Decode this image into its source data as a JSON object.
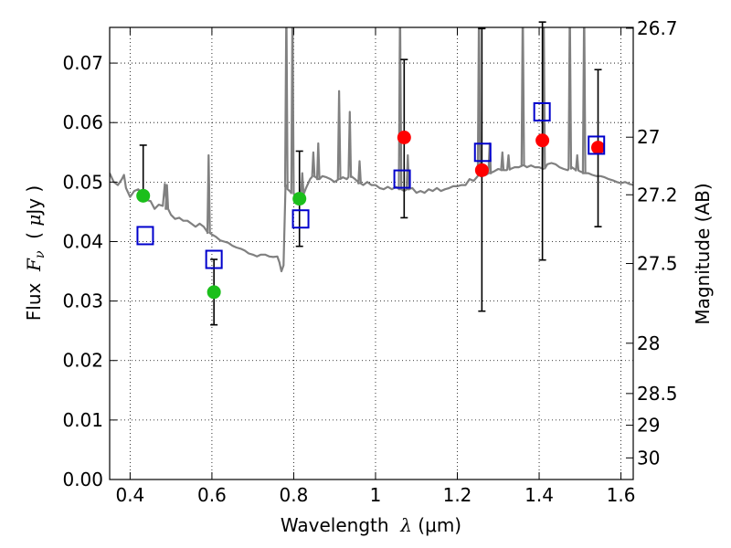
{
  "chart_data": {
    "type": "scatter",
    "xlabel": "Wavelength  λ (μm)",
    "xlabel_parts": [
      "Wavelength  ",
      "λ",
      " (μm)"
    ],
    "ylabel": "Flux  Fν  ( μJy )",
    "ylabel_parts": [
      "Flux  ",
      "F",
      "ν",
      "  ( ",
      "μ",
      "Jy )"
    ],
    "ylabel_right": "Magnitude (AB)",
    "xlim": [
      0.35,
      1.63
    ],
    "ylim": [
      0.0,
      0.076
    ],
    "grid": true,
    "x_ticks": [
      0.4,
      0.6,
      0.8,
      1.0,
      1.2,
      1.4,
      1.6
    ],
    "x_tick_labels": [
      "0.4",
      "0.6",
      "0.8",
      "1",
      "1.2",
      "1.4",
      "1.6"
    ],
    "y_ticks": [
      0.0,
      0.01,
      0.02,
      0.03,
      0.04,
      0.05,
      0.06,
      0.07
    ],
    "y_tick_labels": [
      "0.00",
      "0.01",
      "0.02",
      "0.03",
      "0.04",
      "0.05",
      "0.06",
      "0.07"
    ],
    "mag_ticks": [
      26.7,
      27,
      27.2,
      27.5,
      28,
      28.5,
      29,
      30
    ],
    "mag_tick_labels": [
      "26.7",
      "27",
      "27.2",
      "27.5",
      "28",
      "28.5",
      "29",
      "30"
    ],
    "model_spectrum": {
      "color": "#808080",
      "x": [
        0.35,
        0.36,
        0.37,
        0.38,
        0.385,
        0.39,
        0.4,
        0.41,
        0.42,
        0.43,
        0.44,
        0.45,
        0.46,
        0.47,
        0.48,
        0.485,
        0.49,
        0.5,
        0.51,
        0.52,
        0.53,
        0.54,
        0.55,
        0.56,
        0.57,
        0.58,
        0.59,
        0.6,
        0.61,
        0.62,
        0.63,
        0.64,
        0.65,
        0.66,
        0.67,
        0.68,
        0.69,
        0.7,
        0.71,
        0.72,
        0.73,
        0.74,
        0.75,
        0.76,
        0.765,
        0.77,
        0.775,
        0.78,
        0.785,
        0.79,
        0.8,
        0.81,
        0.82,
        0.83,
        0.84,
        0.85,
        0.86,
        0.87,
        0.88,
        0.89,
        0.9,
        0.91,
        0.92,
        0.93,
        0.94,
        0.95,
        0.96,
        0.97,
        0.98,
        0.99,
        1.0,
        1.01,
        1.02,
        1.03,
        1.04,
        1.05,
        1.06,
        1.07,
        1.08,
        1.09,
        1.1,
        1.11,
        1.12,
        1.13,
        1.14,
        1.15,
        1.16,
        1.17,
        1.18,
        1.19,
        1.2,
        1.21,
        1.22,
        1.23,
        1.24,
        1.25,
        1.26,
        1.27,
        1.28,
        1.29,
        1.3,
        1.31,
        1.32,
        1.33,
        1.34,
        1.35,
        1.36,
        1.37,
        1.38,
        1.39,
        1.4,
        1.41,
        1.42,
        1.43,
        1.44,
        1.45,
        1.46,
        1.47,
        1.48,
        1.49,
        1.5,
        1.51,
        1.52,
        1.53,
        1.54,
        1.55,
        1.56,
        1.57,
        1.58,
        1.59,
        1.6,
        1.61,
        1.62,
        1.63
      ],
      "y": [
        0.0515,
        0.05,
        0.0495,
        0.0505,
        0.0512,
        0.049,
        0.0475,
        0.0485,
        0.0488,
        0.048,
        0.047,
        0.0468,
        0.0455,
        0.0462,
        0.046,
        0.0497,
        0.0455,
        0.0445,
        0.0438,
        0.044,
        0.0435,
        0.0435,
        0.043,
        0.0425,
        0.043,
        0.0425,
        0.0415,
        0.0412,
        0.0408,
        0.0402,
        0.04,
        0.0398,
        0.0393,
        0.039,
        0.0388,
        0.0385,
        0.038,
        0.0378,
        0.0375,
        0.0378,
        0.0378,
        0.0375,
        0.0374,
        0.0375,
        0.0365,
        0.035,
        0.036,
        0.0495,
        0.0488,
        0.0485,
        0.048,
        0.0478,
        0.0478,
        0.049,
        0.0505,
        0.051,
        0.0505,
        0.051,
        0.0508,
        0.0505,
        0.05,
        0.0505,
        0.0508,
        0.0505,
        0.051,
        0.0505,
        0.0498,
        0.0495,
        0.05,
        0.0495,
        0.0495,
        0.049,
        0.0488,
        0.0492,
        0.0488,
        0.0492,
        0.0488,
        0.0485,
        0.0488,
        0.049,
        0.0482,
        0.0485,
        0.0482,
        0.0488,
        0.0485,
        0.049,
        0.0485,
        0.0488,
        0.049,
        0.0493,
        0.0493,
        0.0495,
        0.0495,
        0.0505,
        0.0502,
        0.051,
        0.051,
        0.0512,
        0.0515,
        0.0518,
        0.0522,
        0.052,
        0.052,
        0.0522,
        0.0525,
        0.0525,
        0.0528,
        0.0525,
        0.0528,
        0.0525,
        0.0525,
        0.0522,
        0.053,
        0.0532,
        0.053,
        0.0525,
        0.0522,
        0.052,
        0.0525,
        0.052,
        0.0518,
        0.0515,
        0.0515,
        0.0512,
        0.051,
        0.051,
        0.0508,
        0.0505,
        0.0503,
        0.05,
        0.0498,
        0.05,
        0.0497,
        0.0495
      ],
      "lines": [
        [
          0.49,
          0.0495
        ],
        [
          0.592,
          0.0545
        ],
        [
          0.782,
          0.08
        ],
        [
          0.797,
          0.08
        ],
        [
          0.821,
          0.0515
        ],
        [
          0.848,
          0.055
        ],
        [
          0.86,
          0.0565
        ],
        [
          0.911,
          0.0653
        ],
        [
          0.937,
          0.0618
        ],
        [
          0.961,
          0.0535
        ],
        [
          1.06,
          0.08
        ],
        [
          1.079,
          0.0545
        ],
        [
          1.253,
          0.08
        ],
        [
          1.279,
          0.0565
        ],
        [
          1.31,
          0.055
        ],
        [
          1.325,
          0.0545
        ],
        [
          1.36,
          0.08
        ],
        [
          1.411,
          0.08
        ],
        [
          1.475,
          0.08
        ],
        [
          1.493,
          0.0545
        ],
        [
          1.51,
          0.08
        ]
      ]
    },
    "series": [
      {
        "name": "green",
        "color": "#1bbf1b",
        "x": [
          0.432,
          0.605,
          0.814
        ],
        "y": [
          0.0477,
          0.0315,
          0.0472
        ],
        "err_low": [
          0.0,
          0.0055,
          0.008
        ],
        "err_high": [
          0.0085,
          0.0055,
          0.008
        ]
      },
      {
        "name": "red",
        "color": "#ff0000",
        "x": [
          1.07,
          1.26,
          1.408,
          1.544
        ],
        "y": [
          0.0575,
          0.052,
          0.057,
          0.0558
        ],
        "err_low": [
          0.0135,
          0.0237,
          0.0201,
          0.0133
        ],
        "err_high": [
          0.0131,
          0.0238,
          0.0199,
          0.0131
        ]
      },
      {
        "name": "blue-squares",
        "color": "#0000cc",
        "marker": "open-square",
        "x": [
          0.437,
          0.605,
          0.817,
          1.065,
          1.262,
          1.407,
          1.54
        ],
        "y": [
          0.041,
          0.037,
          0.0438,
          0.0505,
          0.055,
          0.0618,
          0.0562
        ]
      }
    ]
  }
}
